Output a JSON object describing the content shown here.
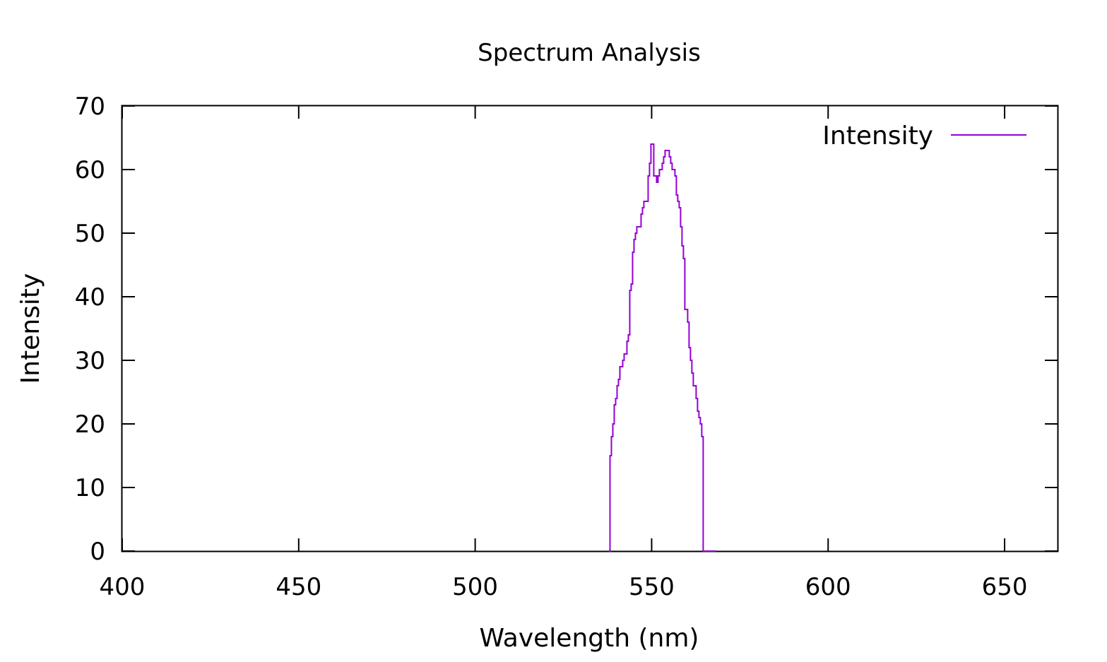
{
  "chart_data": {
    "type": "line",
    "title": "Spectrum Analysis",
    "xlabel": "Wavelength (nm)",
    "ylabel": "Intensity",
    "xlim": [
      400,
      665
    ],
    "ylim": [
      0,
      70
    ],
    "xticks": [
      400,
      450,
      500,
      550,
      600,
      650
    ],
    "yticks": [
      0,
      10,
      20,
      30,
      40,
      50,
      60,
      70
    ],
    "grid": false,
    "legend_position": "top-right",
    "series": [
      {
        "name": "Intensity",
        "color": "#9400d3",
        "step": true,
        "x": [
          537.8,
          538.2,
          538.6,
          539.0,
          539.4,
          539.8,
          540.2,
          540.6,
          541.0,
          541.4,
          541.8,
          542.2,
          542.6,
          543.0,
          543.4,
          543.8,
          544.2,
          544.6,
          545.0,
          545.4,
          545.8,
          546.2,
          546.6,
          547.0,
          547.4,
          547.8,
          548.2,
          548.6,
          549.0,
          549.4,
          549.8,
          550.2,
          550.6,
          551.0,
          551.4,
          551.8,
          552.2,
          552.6,
          553.0,
          553.4,
          553.8,
          554.2,
          554.6,
          555.0,
          555.4,
          555.8,
          556.2,
          556.6,
          557.0,
          557.4,
          557.8,
          558.2,
          558.6,
          559.0,
          559.4,
          559.8,
          560.2,
          560.6,
          561.0,
          561.4,
          561.8,
          562.2,
          562.6,
          563.0,
          563.4,
          563.8,
          564.2,
          564.6,
          565.0,
          565.4,
          565.8,
          566.2,
          566.6,
          567.0,
          567.4,
          567.8,
          568.2
        ],
        "y": [
          0,
          15,
          18,
          20,
          23,
          24,
          26,
          27,
          29,
          29,
          30,
          31,
          31,
          33,
          34,
          41,
          42,
          47,
          49,
          50,
          51,
          51,
          51,
          53,
          54,
          55,
          55,
          55,
          59,
          61,
          64,
          64,
          59,
          59,
          58,
          59,
          60,
          60,
          61,
          62,
          63,
          63,
          63,
          62,
          61,
          60,
          60,
          59,
          56,
          55,
          54,
          51,
          48,
          46,
          38,
          38,
          36,
          32,
          30,
          28,
          26,
          26,
          24,
          22,
          21,
          20,
          18,
          0,
          0,
          0,
          0,
          0,
          0,
          0,
          0,
          0,
          0
        ]
      }
    ]
  }
}
